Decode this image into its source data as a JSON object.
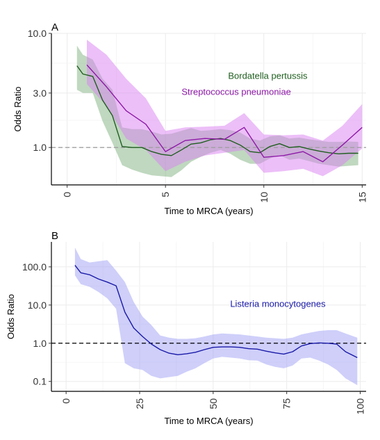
{
  "panels": [
    {
      "panel_label": "A",
      "colors": {
        "Bordatella pertussis": "#1f5e1f",
        "Streptococcus pneumoniae": "#8e1aa8"
      },
      "fill_colors": {
        "Bordatella pertussis": "#7fb27f",
        "Streptococcus pneumoniae": "#d97ff2"
      },
      "chart_data": {
        "type": "line",
        "title": "",
        "xlabel": "Time to MRCA (years)",
        "ylabel": "Odds Ratio",
        "xlim": [
          -0.8,
          15.2
        ],
        "ylim": [
          0.47,
          10.0
        ],
        "yscale": "log",
        "xticks": [
          0,
          5,
          10,
          15
        ],
        "yticks": [
          1.0,
          3.0,
          10.0
        ],
        "ytick_labels": [
          "1.0",
          "3.0",
          "10.0"
        ],
        "reference_line": {
          "y": 1.0,
          "style": "dashed",
          "color": "#a0a0a0"
        },
        "grid": true,
        "series": [
          {
            "name": "Bordatella pertussis",
            "x": [
              0.5,
              0.8,
              1.3,
              1.8,
              2.3,
              2.8,
              3.3,
              3.8,
              4.3,
              4.8,
              5.3,
              5.8,
              6.3,
              6.8,
              7.3,
              7.8,
              8.3,
              8.8,
              9.3,
              9.8,
              10.3,
              10.8,
              11.3,
              11.8,
              12.3,
              12.8,
              13.3,
              13.8,
              14.3,
              14.8
            ],
            "y": [
              5.2,
              4.4,
              4.2,
              2.6,
              1.9,
              1.02,
              1.0,
              1.0,
              0.92,
              0.87,
              0.85,
              0.95,
              1.07,
              1.1,
              1.17,
              1.2,
              1.15,
              1.05,
              0.92,
              0.9,
              1.02,
              1.08,
              1.0,
              1.02,
              0.97,
              0.93,
              0.9,
              0.88,
              0.89,
              0.89
            ],
            "lower": [
              3.2,
              3.0,
              3.0,
              1.7,
              1.1,
              0.7,
              0.64,
              0.6,
              0.57,
              0.56,
              0.55,
              0.63,
              0.75,
              0.83,
              0.9,
              0.95,
              0.88,
              0.78,
              0.72,
              0.72,
              0.8,
              0.86,
              0.78,
              0.8,
              0.76,
              0.72,
              0.7,
              0.68,
              0.69,
              0.7
            ],
            "upper": [
              7.8,
              6.5,
              5.9,
              4.0,
              3.2,
              1.5,
              1.45,
              1.45,
              1.38,
              1.3,
              1.32,
              1.4,
              1.48,
              1.4,
              1.42,
              1.45,
              1.42,
              1.35,
              1.2,
              1.15,
              1.25,
              1.28,
              1.2,
              1.22,
              1.18,
              1.15,
              1.12,
              1.12,
              1.13,
              1.12
            ]
          },
          {
            "name": "Streptococcus pneumoniae",
            "x": [
              1.0,
              2.0,
              3.0,
              4.0,
              5.0,
              6.0,
              7.0,
              8.0,
              9.0,
              10.0,
              11.0,
              12.0,
              13.0,
              14.0,
              15.0
            ],
            "y": [
              5.3,
              3.4,
              2.1,
              1.6,
              0.92,
              1.15,
              1.2,
              1.18,
              1.5,
              0.82,
              0.85,
              0.92,
              0.75,
              1.05,
              1.5
            ],
            "lower": [
              3.6,
              2.3,
              1.2,
              0.95,
              0.62,
              0.75,
              0.85,
              0.9,
              0.95,
              0.6,
              0.62,
              0.65,
              0.56,
              0.7,
              0.98
            ],
            "upper": [
              8.8,
              6.5,
              4.0,
              2.7,
              1.4,
              1.5,
              1.52,
              1.55,
              2.0,
              1.3,
              1.28,
              1.3,
              1.15,
              1.55,
              2.4
            ]
          }
        ],
        "annotations": [
          {
            "text": "Bordatella pertussis",
            "x": 10.2,
            "y": 4.0
          },
          {
            "text": "Streptococcus pneumoniae",
            "x": 8.6,
            "y": 2.9
          }
        ]
      }
    },
    {
      "panel_label": "B",
      "colors": {
        "Listeria monocytogenes": "#1a1aa8"
      },
      "fill_colors": {
        "Listeria monocytogenes": "#9f9ff5"
      },
      "chart_data": {
        "type": "line",
        "title": "",
        "xlabel": "Time to MRCA (years)",
        "ylabel": "Odds Ratio",
        "xlim": [
          -5,
          102
        ],
        "ylim": [
          0.055,
          450
        ],
        "yscale": "log",
        "xticks": [
          0,
          25,
          50,
          75,
          100
        ],
        "yticks": [
          0.1,
          1.0,
          10.0,
          100.0
        ],
        "ytick_labels": [
          "0.1",
          "1.0",
          "10.0",
          "100.0"
        ],
        "reference_line": {
          "y": 1.0,
          "style": "dashed",
          "color": "#000000"
        },
        "grid": true,
        "series": [
          {
            "name": "Listeria monocytogenes",
            "x": [
              3,
              5,
              8,
              11,
              14,
              17,
              20,
              23,
              26,
              29,
              32,
              35,
              38,
              41,
              44,
              47,
              50,
              53,
              56,
              59,
              62,
              65,
              68,
              71,
              74,
              77,
              80,
              83,
              86,
              89,
              92,
              95,
              99
            ],
            "y": [
              110,
              70,
              62,
              48,
              40,
              32,
              6.5,
              2.5,
              1.5,
              0.95,
              0.68,
              0.55,
              0.5,
              0.53,
              0.58,
              0.68,
              0.78,
              0.8,
              0.8,
              0.78,
              0.72,
              0.7,
              0.62,
              0.56,
              0.52,
              0.6,
              0.85,
              0.98,
              1.02,
              1.0,
              0.95,
              0.6,
              0.42
            ],
            "lower": [
              60,
              35,
              30,
              22,
              15,
              8,
              0.3,
              0.22,
              0.2,
              0.14,
              0.12,
              0.13,
              0.14,
              0.18,
              0.22,
              0.3,
              0.4,
              0.44,
              0.42,
              0.4,
              0.36,
              0.35,
              0.28,
              0.24,
              0.22,
              0.26,
              0.4,
              0.42,
              0.35,
              0.28,
              0.2,
              0.12,
              0.08
            ],
            "upper": [
              320,
              160,
              130,
              140,
              150,
              80,
              40,
              12,
              5,
              3.0,
              1.6,
              1.4,
              1.3,
              1.3,
              1.35,
              1.5,
              1.7,
              1.8,
              1.75,
              1.7,
              1.6,
              1.5,
              1.4,
              1.35,
              1.3,
              1.4,
              1.7,
              1.9,
              2.1,
              2.2,
              2.2,
              1.8,
              1.4
            ]
          }
        ],
        "annotations": [
          {
            "text": "Listeria monocytogenes",
            "x": 72,
            "y": 9.0
          }
        ]
      }
    }
  ]
}
